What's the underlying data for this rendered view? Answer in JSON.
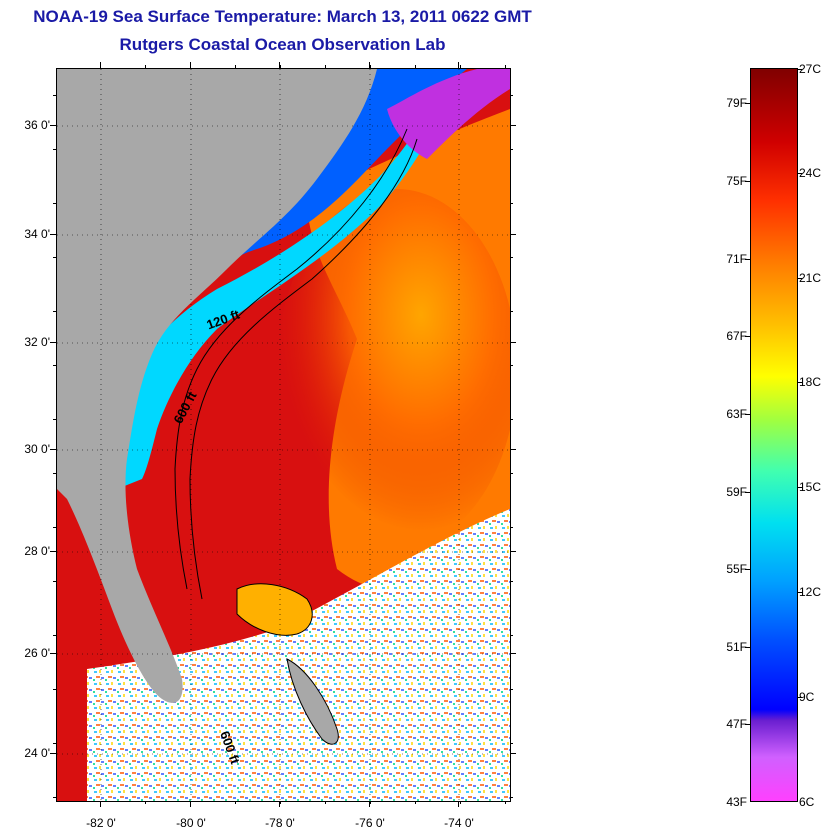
{
  "header": {
    "title": "NOAA-19 Sea Surface Temperature:  March 13, 2011 0622 GMT",
    "subtitle": "Rutgers Coastal Ocean Observation Lab"
  },
  "map": {
    "lat_labels": [
      "36 0'",
      "34 0'",
      "32 0'",
      "30 0'",
      "28 0'",
      "26 0'",
      "24 0'"
    ],
    "lon_labels": [
      "-82 0'",
      "-80 0'",
      "-78 0'",
      "-76 0'",
      "-74 0'"
    ],
    "contour_labels": [
      "120 ft",
      "600 ft",
      "600 ft"
    ],
    "colors": {
      "land": "#a8a8a8",
      "coastal_cold": "#0060ff",
      "shelf": "#00d8ff",
      "gulf_stream": "#d81010",
      "warm": "#ff7a00"
    }
  },
  "colorbar": {
    "fahrenheit_labels": [
      "79F",
      "75F",
      "71F",
      "67F",
      "63F",
      "59F",
      "55F",
      "51F",
      "47F",
      "43F"
    ],
    "celsius_labels": [
      "27C",
      "24C",
      "21C",
      "18C",
      "15C",
      "12C",
      "9C",
      "6C"
    ],
    "min_celsius": 6,
    "max_celsius": 27
  }
}
